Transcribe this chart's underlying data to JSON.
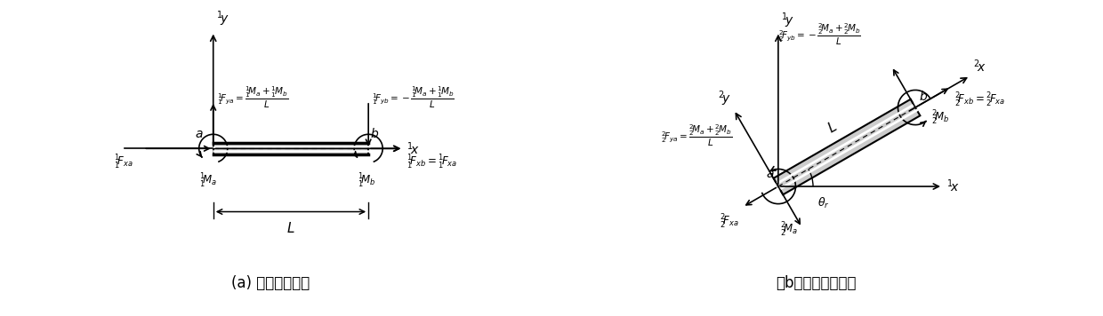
{
  "fig_width": 12.4,
  "fig_height": 3.56,
  "bg_color": "#ffffff",
  "caption_a": "(a) 初始平衡状态",
  "caption_b": "（b）经历刚体转动",
  "caption_fontsize": 12
}
